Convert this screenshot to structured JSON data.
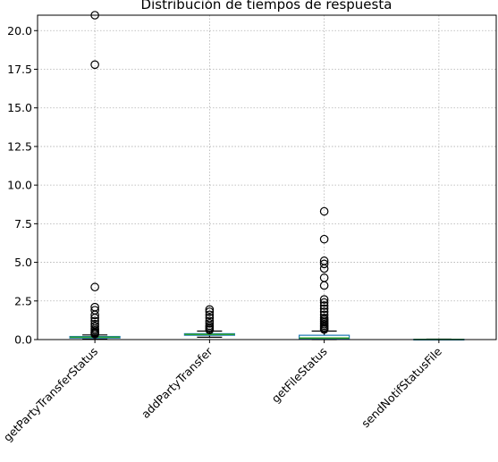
{
  "chart_data": {
    "type": "boxplot",
    "title": "Distribución de tiempos de respuesta",
    "xlabel": "",
    "ylabel": "",
    "ylim": [
      0,
      21
    ],
    "yticks": [
      0.0,
      2.5,
      5.0,
      7.5,
      10.0,
      12.5,
      15.0,
      17.5,
      20.0
    ],
    "ytick_labels": [
      "0.0",
      "2.5",
      "5.0",
      "7.5",
      "10.0",
      "12.5",
      "15.0",
      "17.5",
      "20.0"
    ],
    "grid": true,
    "categories": [
      "getPartyTransferStatus",
      "addPartyTransfer",
      "getFileStatus",
      "sendNotifStatusFile"
    ],
    "boxes": [
      {
        "category": "getPartyTransferStatus",
        "q1": 0.1,
        "median": 0.15,
        "q3": 0.2,
        "whisker_low": 0.02,
        "whisker_high": 0.3,
        "fliers": [
          21.0,
          17.8,
          3.4,
          2.1,
          1.9,
          1.6,
          1.4,
          1.2,
          1.0,
          0.85,
          0.7,
          0.6,
          0.5,
          0.45,
          0.4,
          0.35
        ]
      },
      {
        "category": "addPartyTransfer",
        "q1": 0.28,
        "median": 0.33,
        "q3": 0.38,
        "whisker_low": 0.15,
        "whisker_high": 0.55,
        "fliers": [
          1.95,
          1.8,
          1.6,
          1.4,
          1.2,
          1.05,
          0.9,
          0.8,
          0.7,
          0.62
        ]
      },
      {
        "category": "getFileStatus",
        "q1": 0.05,
        "median": 0.1,
        "q3": 0.28,
        "whisker_low": 0.0,
        "whisker_high": 0.55,
        "fliers": [
          8.3,
          6.5,
          5.1,
          4.9,
          4.6,
          4.0,
          3.5,
          2.6,
          2.4,
          2.2,
          2.0,
          1.8,
          1.6,
          1.4,
          1.3,
          1.2,
          1.1,
          1.0,
          0.9,
          0.8,
          0.7,
          0.65
        ]
      },
      {
        "category": "sendNotifStatusFile",
        "q1": 0.0,
        "median": 0.01,
        "q3": 0.02,
        "whisker_low": 0.0,
        "whisker_high": 0.03,
        "fliers": []
      }
    ]
  }
}
